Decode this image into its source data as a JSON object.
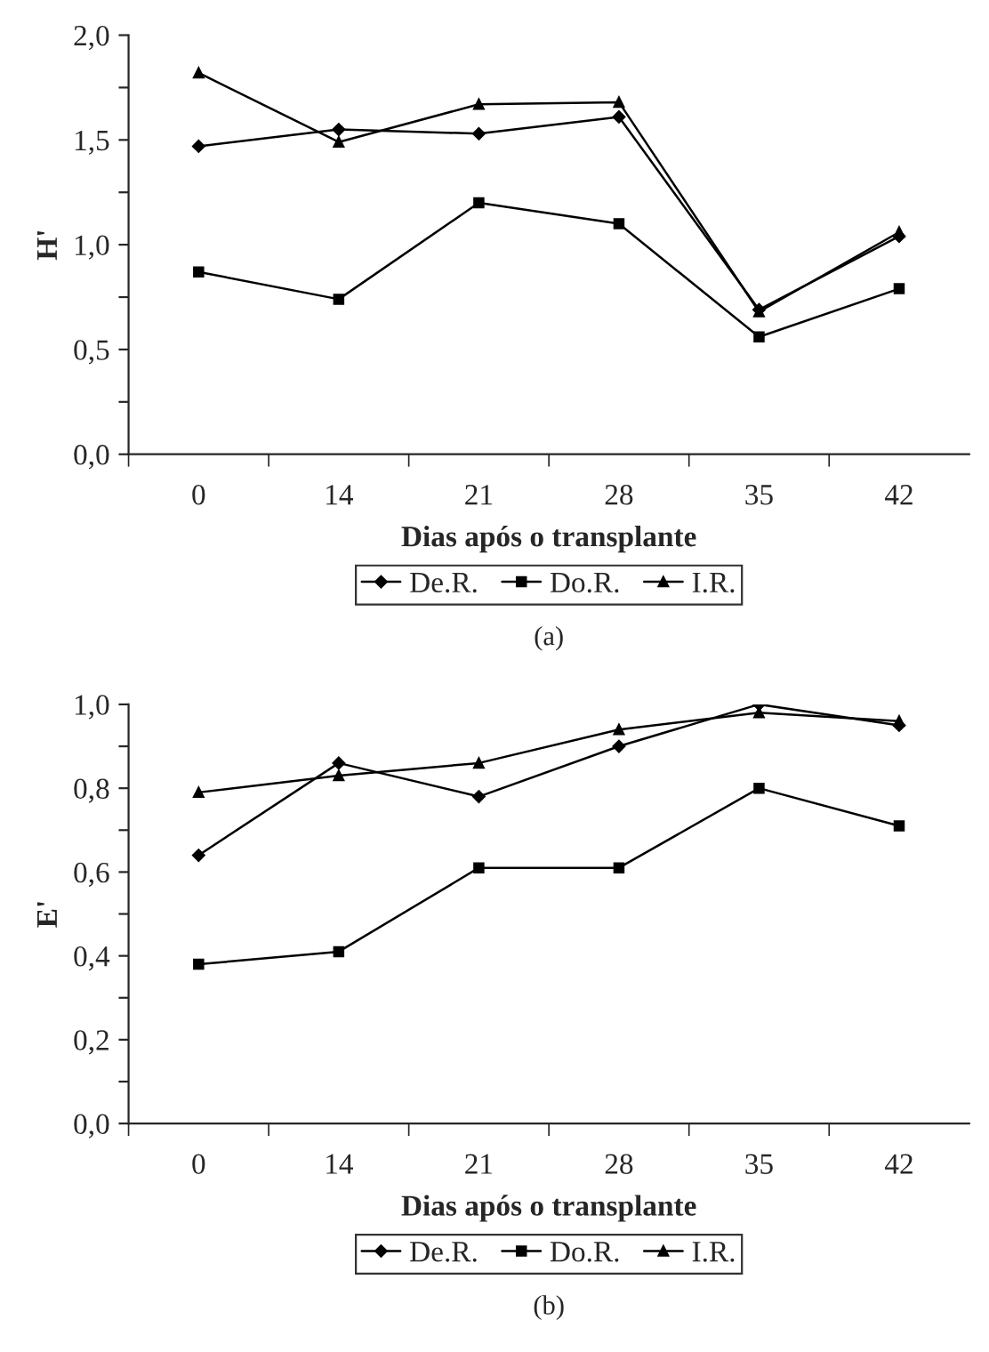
{
  "chart_data": [
    {
      "type": "line",
      "xlabel": "Dias após o transplante",
      "ylabel": "H'",
      "categories": [
        "0",
        "14",
        "21",
        "28",
        "35",
        "42"
      ],
      "series": [
        {
          "name": "De.R.",
          "color": "#000000",
          "marker": "diamond",
          "values": [
            1.47,
            1.55,
            1.53,
            1.61,
            0.69,
            1.04
          ]
        },
        {
          "name": "Do.R.",
          "color": "#000000",
          "marker": "square",
          "values": [
            0.87,
            0.74,
            1.2,
            1.1,
            0.56,
            0.79
          ]
        },
        {
          "name": "I.R.",
          "color": "#000000",
          "marker": "triangle",
          "values": [
            1.82,
            1.49,
            1.67,
            1.68,
            0.68,
            1.06
          ]
        }
      ],
      "ylim": [
        0,
        2
      ],
      "yticks": [
        {
          "value": 0,
          "label": "0,0"
        },
        {
          "value": 0.25,
          "label": null
        },
        {
          "value": 0.5,
          "label": "0,5"
        },
        {
          "value": 0.75,
          "label": null
        },
        {
          "value": 1,
          "label": "1,0"
        },
        {
          "value": 1.25,
          "label": null
        },
        {
          "value": 1.5,
          "label": "1,5"
        },
        {
          "value": 1.75,
          "label": null
        },
        {
          "value": 2,
          "label": "2,0"
        }
      ],
      "legend": "bottom",
      "grid": false,
      "line_style": "solid",
      "annotations": [
        "(a)"
      ]
    },
    {
      "type": "line",
      "xlabel": "Dias após o transplante",
      "ylabel": "E'",
      "categories": [
        "0",
        "14",
        "21",
        "28",
        "35",
        "42"
      ],
      "series": [
        {
          "name": "De.R.",
          "color": "#000000",
          "marker": "diamond",
          "values": [
            0.64,
            0.86,
            0.78,
            0.9,
            1.0,
            0.95
          ]
        },
        {
          "name": "Do.R.",
          "color": "#000000",
          "marker": "square",
          "values": [
            0.38,
            0.41,
            0.61,
            0.61,
            0.8,
            0.71
          ]
        },
        {
          "name": "I.R.",
          "color": "#000000",
          "marker": "triangle",
          "values": [
            0.79,
            0.83,
            0.86,
            0.94,
            0.98,
            0.96
          ]
        }
      ],
      "ylim": [
        0,
        1
      ],
      "yticks": [
        {
          "value": 0,
          "label": "0,0"
        },
        {
          "value": 0.1,
          "label": null
        },
        {
          "value": 0.2,
          "label": "0,2"
        },
        {
          "value": 0.3,
          "label": null
        },
        {
          "value": 0.4,
          "label": "0,4"
        },
        {
          "value": 0.5,
          "label": null
        },
        {
          "value": 0.6,
          "label": "0,6"
        },
        {
          "value": 0.7,
          "label": null
        },
        {
          "value": 0.8,
          "label": "0,8"
        },
        {
          "value": 0.9,
          "label": null
        },
        {
          "value": 1,
          "label": "1,0"
        }
      ],
      "legend": "bottom",
      "grid": false,
      "line_style": "solid",
      "annotations": [
        "(b)"
      ]
    }
  ]
}
